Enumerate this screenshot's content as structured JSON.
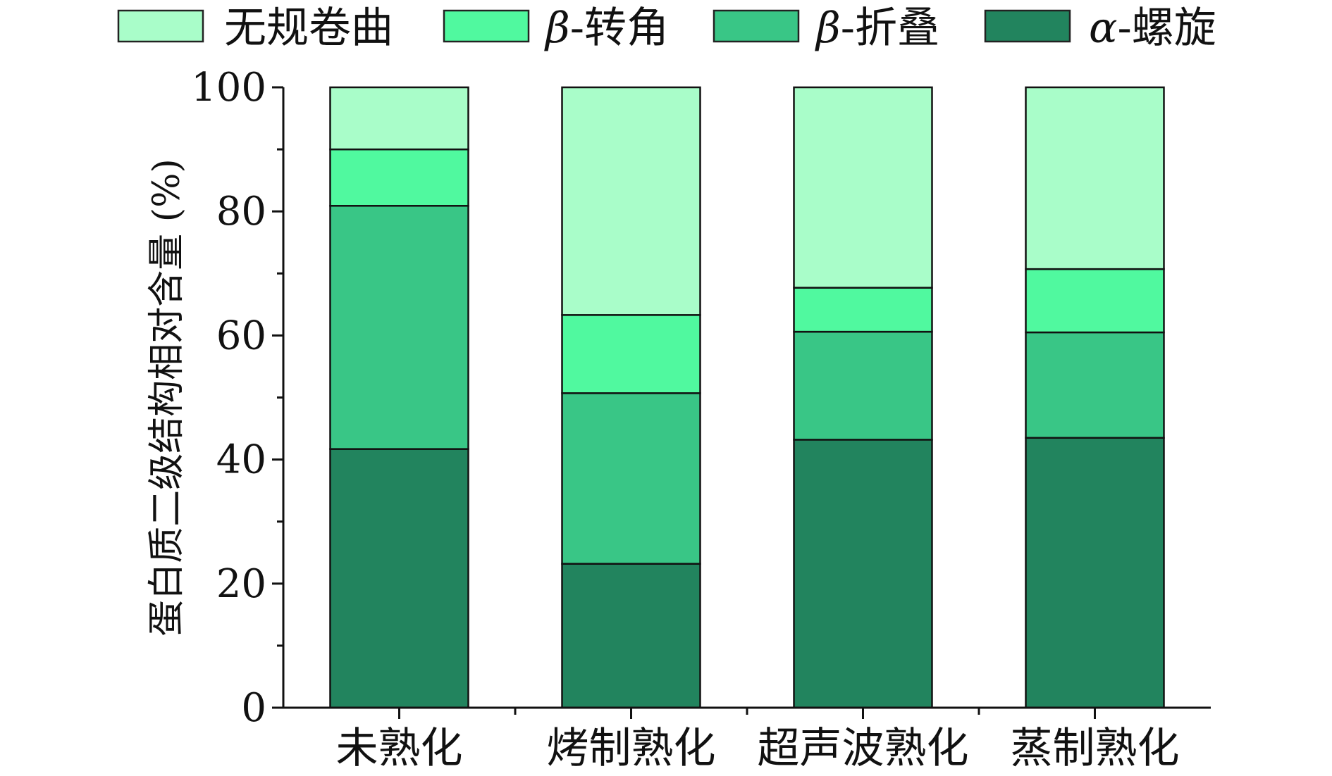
{
  "chart_data": {
    "type": "bar",
    "stacked": true,
    "categories": [
      "未熟化",
      "烤制熟化",
      "超声波熟化",
      "蒸制熟化"
    ],
    "series": [
      {
        "name": "α-螺旋",
        "color": "#22845e",
        "values": [
          41.7,
          23.2,
          43.2,
          43.5
        ]
      },
      {
        "name": "β-折叠",
        "color": "#39c686",
        "values": [
          39.2,
          27.5,
          17.4,
          17.0
        ]
      },
      {
        "name": "β-转角",
        "color": "#50f99f",
        "values": [
          9.1,
          12.6,
          7.1,
          10.2
        ]
      },
      {
        "name": "无规卷曲",
        "color": "#a9fdc9",
        "values": [
          10.0,
          36.7,
          32.3,
          29.3
        ]
      }
    ],
    "legend_order": [
      "无规卷曲",
      "β-转角",
      "β-折叠",
      "α-螺旋"
    ],
    "title": "",
    "xlabel": "",
    "ylabel": "蛋白质二级结构相对含量 (%)",
    "ylim": [
      0,
      100
    ],
    "yticks": [
      0,
      20,
      40,
      60,
      80,
      100
    ],
    "grid": false,
    "legend_position": "top"
  }
}
